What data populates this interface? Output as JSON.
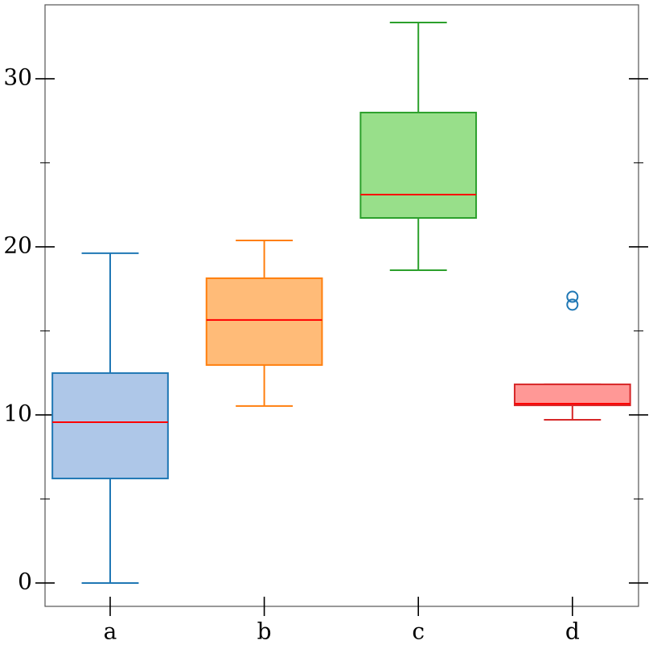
{
  "chart_data": {
    "type": "box",
    "categories": [
      "a",
      "b",
      "c",
      "d"
    ],
    "boxes": [
      {
        "whislo": 0,
        "q1": 6.22,
        "med": 9.57,
        "q3": 12.49,
        "whishi": 19.62,
        "fliers": [],
        "color": "#1f77b4",
        "fill": "#aec7e8"
      },
      {
        "whislo": 10.53,
        "q1": 12.97,
        "med": 15.65,
        "q3": 18.13,
        "whishi": 20.38,
        "fliers": [],
        "color": "#ff7f0e",
        "fill": "#ffbb78"
      },
      {
        "whislo": 18.61,
        "q1": 21.72,
        "med": 23.11,
        "q3": 27.99,
        "whishi": 33.35,
        "fliers": [],
        "color": "#2ca02c",
        "fill": "#98df8a"
      },
      {
        "whislo": 9.71,
        "q1": 10.57,
        "med": 10.67,
        "q3": 11.82,
        "whishi": 11.82,
        "fliers": [
          17.03,
          16.56
        ],
        "color": "#d62728",
        "fill": "#ff9896"
      }
    ],
    "median_color": "#ff0000",
    "flier_color": "#1f77b4",
    "ylim": [
      -1.39,
      34.4
    ],
    "yticks": [
      0,
      10,
      20,
      30
    ],
    "yminor": [
      5,
      15,
      25
    ]
  }
}
